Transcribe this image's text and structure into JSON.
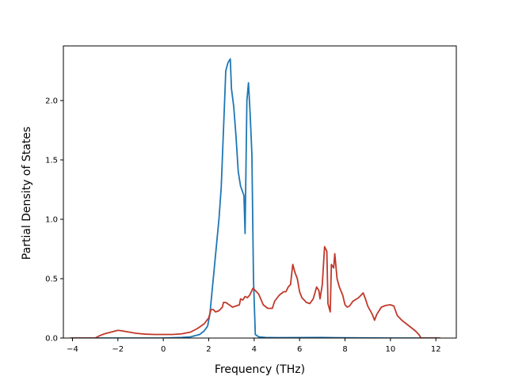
{
  "chart_data": {
    "type": "line",
    "title": "",
    "xlabel": "Frequency (THz)",
    "ylabel": "Partial Density of States",
    "xlim": [
      -4.4,
      12.9
    ],
    "ylim": [
      0,
      2.46
    ],
    "grid": false,
    "legend": "none",
    "x_ticks": [
      -4,
      -2,
      0,
      2,
      4,
      6,
      8,
      10,
      12
    ],
    "x_tick_labels": [
      "−4",
      "−2",
      "0",
      "2",
      "4",
      "6",
      "8",
      "10",
      "12"
    ],
    "y_ticks": [
      0,
      0.5,
      1.0,
      1.5,
      2.0
    ],
    "y_tick_labels": [
      "0.0",
      "0.5",
      "1.0",
      "1.5",
      "2.0"
    ],
    "series": [
      {
        "color": "#1f77b4",
        "points": [
          [
            -4.0,
            0
          ],
          [
            0.0,
            0
          ],
          [
            0.8,
            0.005
          ],
          [
            1.2,
            0.01
          ],
          [
            1.6,
            0.03
          ],
          [
            1.8,
            0.06
          ],
          [
            1.95,
            0.1
          ],
          [
            2.05,
            0.2
          ],
          [
            2.15,
            0.4
          ],
          [
            2.3,
            0.7
          ],
          [
            2.45,
            1.0
          ],
          [
            2.55,
            1.27
          ],
          [
            2.7,
            2.0
          ],
          [
            2.75,
            2.25
          ],
          [
            2.85,
            2.32
          ],
          [
            2.95,
            2.35
          ],
          [
            3.0,
            2.1
          ],
          [
            3.1,
            1.95
          ],
          [
            3.2,
            1.7
          ],
          [
            3.3,
            1.4
          ],
          [
            3.4,
            1.28
          ],
          [
            3.55,
            1.2
          ],
          [
            3.6,
            0.88
          ],
          [
            3.68,
            2.0
          ],
          [
            3.75,
            2.15
          ],
          [
            3.82,
            1.9
          ],
          [
            3.9,
            1.55
          ],
          [
            3.97,
            0.5
          ],
          [
            4.05,
            0.03
          ],
          [
            4.2,
            0.01
          ],
          [
            4.5,
            0.005
          ],
          [
            5.0,
            0.003
          ],
          [
            7.0,
            0.005
          ],
          [
            7.5,
            0.003
          ],
          [
            8.0,
            0.002
          ],
          [
            10.0,
            0
          ],
          [
            12.1,
            0
          ]
        ]
      },
      {
        "color": "#c0392b",
        "points": [
          [
            -4.1,
            0
          ],
          [
            -3.0,
            0
          ],
          [
            -2.8,
            0.02
          ],
          [
            -2.6,
            0.035
          ],
          [
            -2.4,
            0.045
          ],
          [
            -2.2,
            0.055
          ],
          [
            -2.0,
            0.065
          ],
          [
            -1.8,
            0.06
          ],
          [
            -1.5,
            0.05
          ],
          [
            -1.2,
            0.04
          ],
          [
            -0.8,
            0.033
          ],
          [
            -0.4,
            0.03
          ],
          [
            0.0,
            0.03
          ],
          [
            0.4,
            0.03
          ],
          [
            0.8,
            0.035
          ],
          [
            1.2,
            0.05
          ],
          [
            1.5,
            0.08
          ],
          [
            1.8,
            0.12
          ],
          [
            2.0,
            0.17
          ],
          [
            2.1,
            0.24
          ],
          [
            2.2,
            0.24
          ],
          [
            2.3,
            0.22
          ],
          [
            2.45,
            0.23
          ],
          [
            2.6,
            0.26
          ],
          [
            2.65,
            0.3
          ],
          [
            2.75,
            0.3
          ],
          [
            2.9,
            0.28
          ],
          [
            3.05,
            0.26
          ],
          [
            3.2,
            0.27
          ],
          [
            3.35,
            0.28
          ],
          [
            3.4,
            0.33
          ],
          [
            3.5,
            0.32
          ],
          [
            3.6,
            0.35
          ],
          [
            3.7,
            0.34
          ],
          [
            3.8,
            0.36
          ],
          [
            3.9,
            0.4
          ],
          [
            3.95,
            0.42
          ],
          [
            4.05,
            0.4
          ],
          [
            4.2,
            0.37
          ],
          [
            4.4,
            0.28
          ],
          [
            4.6,
            0.25
          ],
          [
            4.8,
            0.25
          ],
          [
            4.9,
            0.31
          ],
          [
            5.1,
            0.36
          ],
          [
            5.3,
            0.39
          ],
          [
            5.4,
            0.39
          ],
          [
            5.5,
            0.43
          ],
          [
            5.6,
            0.45
          ],
          [
            5.7,
            0.62
          ],
          [
            5.8,
            0.55
          ],
          [
            5.9,
            0.5
          ],
          [
            6.0,
            0.39
          ],
          [
            6.1,
            0.34
          ],
          [
            6.3,
            0.3
          ],
          [
            6.45,
            0.29
          ],
          [
            6.6,
            0.33
          ],
          [
            6.75,
            0.43
          ],
          [
            6.85,
            0.4
          ],
          [
            6.9,
            0.33
          ],
          [
            7.0,
            0.45
          ],
          [
            7.1,
            0.77
          ],
          [
            7.2,
            0.73
          ],
          [
            7.25,
            0.29
          ],
          [
            7.35,
            0.22
          ],
          [
            7.4,
            0.62
          ],
          [
            7.5,
            0.59
          ],
          [
            7.55,
            0.71
          ],
          [
            7.65,
            0.5
          ],
          [
            7.75,
            0.43
          ],
          [
            7.9,
            0.36
          ],
          [
            8.0,
            0.28
          ],
          [
            8.1,
            0.26
          ],
          [
            8.2,
            0.27
          ],
          [
            8.35,
            0.31
          ],
          [
            8.6,
            0.34
          ],
          [
            8.75,
            0.37
          ],
          [
            8.8,
            0.38
          ],
          [
            8.9,
            0.33
          ],
          [
            9.0,
            0.27
          ],
          [
            9.2,
            0.2
          ],
          [
            9.3,
            0.15
          ],
          [
            9.4,
            0.2
          ],
          [
            9.6,
            0.26
          ],
          [
            9.8,
            0.275
          ],
          [
            10.0,
            0.28
          ],
          [
            10.15,
            0.27
          ],
          [
            10.3,
            0.19
          ],
          [
            10.5,
            0.15
          ],
          [
            10.7,
            0.12
          ],
          [
            10.9,
            0.09
          ],
          [
            11.1,
            0.06
          ],
          [
            11.25,
            0.03
          ],
          [
            11.35,
            0
          ],
          [
            12.2,
            0
          ]
        ]
      }
    ]
  }
}
